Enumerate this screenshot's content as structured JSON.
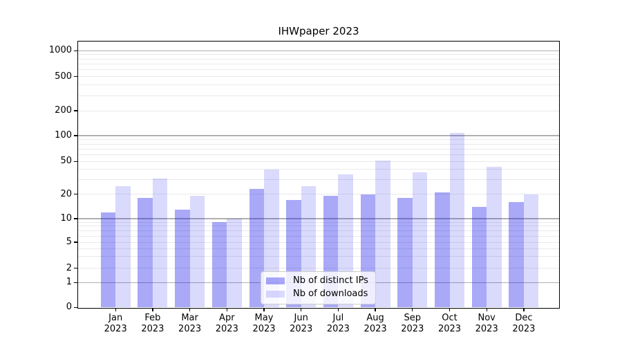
{
  "title": "IHWpaper 2023",
  "chart_data": {
    "type": "bar",
    "title": "IHWpaper 2023",
    "categories": [
      "Jan 2023",
      "Feb 2023",
      "Mar 2023",
      "Apr 2023",
      "May 2023",
      "Jun 2023",
      "Jul 2023",
      "Aug 2023",
      "Sep 2023",
      "Oct 2023",
      "Nov 2023",
      "Dec 2023"
    ],
    "series": [
      {
        "name": "Nb of distinct IPs",
        "color": "rgba(10,10,235,0.35)",
        "values": [
          12,
          18,
          13,
          9,
          23,
          17,
          19,
          20,
          18,
          21,
          14,
          16
        ]
      },
      {
        "name": "Nb of downloads",
        "color": "rgba(10,10,235,0.15)",
        "values": [
          25,
          31,
          19,
          10,
          40,
          25,
          35,
          51,
          37,
          108,
          43,
          20
        ]
      }
    ],
    "xlabel": "",
    "ylabel": "",
    "yscale": "asinh (log-like above 1, linear between 0 and 1)",
    "y_ticks": [
      0,
      1,
      2,
      5,
      10,
      20,
      50,
      100,
      200,
      500,
      1000
    ],
    "y_major_gridlines": [
      1,
      10,
      100,
      1000
    ],
    "y_minor_gridlines": [
      2,
      3,
      4,
      5,
      6,
      7,
      8,
      9,
      20,
      30,
      40,
      50,
      60,
      70,
      80,
      90,
      200,
      300,
      400,
      500,
      600,
      700,
      800,
      900
    ],
    "ylim": [
      0,
      1280
    ],
    "grid": "horizontal",
    "legend_position": "lower center"
  },
  "colors": {
    "bar_distinct_ips": "rgba(10,10,235,0.35)",
    "bar_downloads": "rgba(10,10,235,0.15)",
    "grid_major": "#b0b0b0",
    "grid_minor": "#e9e9ec",
    "axis": "#000000",
    "background": "#ffffff",
    "legend_border": "#cccccc"
  }
}
